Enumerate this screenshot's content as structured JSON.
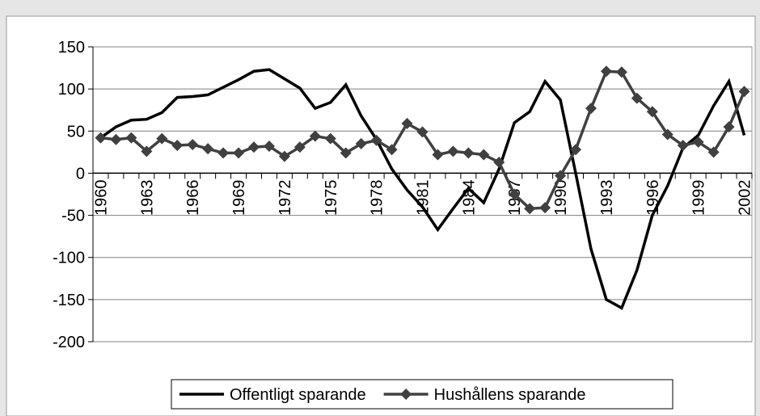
{
  "chart_data": {
    "type": "line",
    "categories": [
      "1960",
      null,
      null,
      "1963",
      null,
      null,
      "1966",
      null,
      null,
      "1969",
      null,
      null,
      "1972",
      null,
      null,
      "1975",
      null,
      null,
      "1978",
      null,
      null,
      "1981",
      null,
      null,
      "1984",
      null,
      null,
      "1987",
      null,
      null,
      "1990",
      null,
      null,
      "1993",
      null,
      null,
      "1996",
      null,
      null,
      "1999",
      null,
      null,
      "2002"
    ],
    "series": [
      {
        "name": "Offentligt sparande",
        "color": "#000000",
        "marker": "none",
        "values": [
          42,
          55,
          63,
          64,
          72,
          90,
          91,
          93,
          102,
          111,
          121,
          123,
          112,
          101,
          77,
          84,
          105,
          68,
          40,
          5,
          -20,
          -40,
          -67,
          -42,
          -18,
          -35,
          5,
          60,
          73,
          109,
          87,
          0,
          -90,
          -150,
          -160,
          -115,
          -50,
          -15,
          30,
          45,
          80,
          109,
          45
        ]
      },
      {
        "name": "Hushållens sparande",
        "color": "#404040",
        "marker": "diamond",
        "values": [
          42,
          40,
          42,
          26,
          41,
          33,
          34,
          29,
          24,
          24,
          31,
          32,
          20,
          31,
          44,
          41,
          24,
          35,
          39,
          28,
          59,
          49,
          22,
          26,
          24,
          22,
          13,
          -25,
          -42,
          -41,
          -3,
          28,
          77,
          121,
          120,
          89,
          73,
          46,
          33,
          37,
          25,
          55,
          97
        ]
      }
    ],
    "ylim": [
      -200,
      150
    ],
    "yticks": [
      -200,
      -150,
      -100,
      -50,
      0,
      50,
      100,
      150
    ],
    "grid": true,
    "legend": "bottom"
  }
}
